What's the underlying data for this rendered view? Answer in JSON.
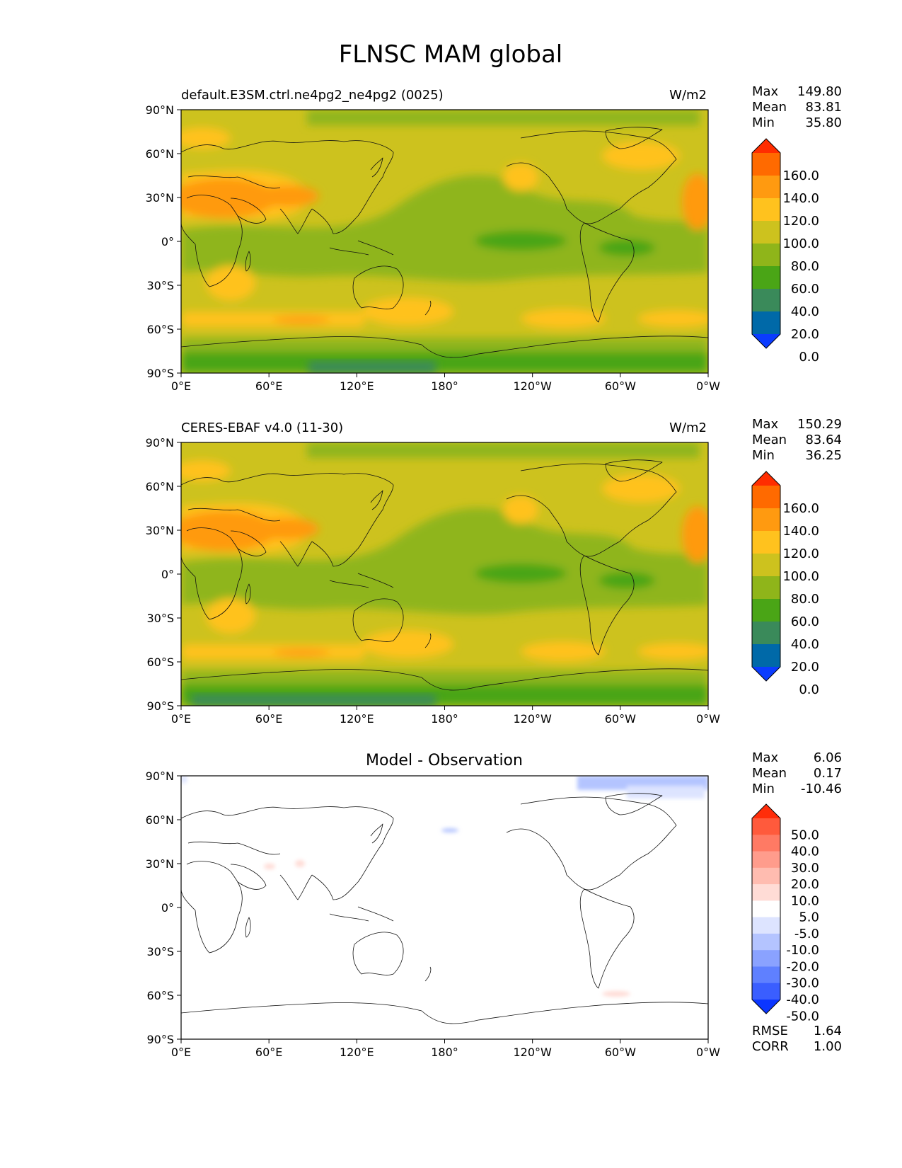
{
  "figure": {
    "title": "FLNSC MAM global"
  },
  "axes": {
    "lat_labels": [
      "90°N",
      "60°N",
      "30°N",
      "0°",
      "30°S",
      "60°S",
      "90°S"
    ],
    "lon_labels": [
      "0°E",
      "60°E",
      "120°E",
      "180°",
      "120°W",
      "60°W",
      "0°W"
    ]
  },
  "panels": [
    {
      "left_title": "default.E3SM.ctrl.ne4pg2_ne4pg2 (0025)",
      "center_title": "",
      "units": "W/m2",
      "stats": [
        {
          "label": "Max",
          "value": "149.80"
        },
        {
          "label": "Mean",
          "value": "83.81"
        },
        {
          "label": "Min",
          "value": "35.80"
        }
      ],
      "colorbar_labels": [
        "160.0",
        "140.0",
        "120.0",
        "100.0",
        "80.0",
        "60.0",
        "40.0",
        "20.0",
        "0.0"
      ],
      "colorbar_colors": [
        "#ff2d00",
        "#ff6a00",
        "#ff9a10",
        "#ffc21e",
        "#cdc21e",
        "#8fb51a",
        "#4aa516",
        "#3a8a5a",
        "#0069a8",
        "#0b3cff"
      ],
      "extra_stats": []
    },
    {
      "left_title": "CERES-EBAF v4.0 (11-30)",
      "center_title": "",
      "units": "W/m2",
      "stats": [
        {
          "label": "Max",
          "value": "150.29"
        },
        {
          "label": "Mean",
          "value": "83.64"
        },
        {
          "label": "Min",
          "value": "36.25"
        }
      ],
      "colorbar_labels": [
        "160.0",
        "140.0",
        "120.0",
        "100.0",
        "80.0",
        "60.0",
        "40.0",
        "20.0",
        "0.0"
      ],
      "colorbar_colors": [
        "#ff2d00",
        "#ff6a00",
        "#ff9a10",
        "#ffc21e",
        "#cdc21e",
        "#8fb51a",
        "#4aa516",
        "#3a8a5a",
        "#0069a8",
        "#0b3cff"
      ],
      "extra_stats": []
    },
    {
      "left_title": "",
      "center_title": "Model - Observation",
      "units": "",
      "stats": [
        {
          "label": "Max",
          "value": "6.06"
        },
        {
          "label": "Mean",
          "value": "0.17"
        },
        {
          "label": "Min",
          "value": "-10.46"
        }
      ],
      "colorbar_labels": [
        "50.0",
        "40.0",
        "30.0",
        "20.0",
        "10.0",
        "5.0",
        "-5.0",
        "-10.0",
        "-20.0",
        "-30.0",
        "-40.0",
        "-50.0"
      ],
      "colorbar_colors": [
        "#ff2d0a",
        "#ff5a3c",
        "#ff7a64",
        "#ff9c8c",
        "#ffbcb0",
        "#ffdcd6",
        "#ffffff",
        "#dde4ff",
        "#b4c4ff",
        "#8aa2ff",
        "#5f80ff",
        "#3a5eff",
        "#0b36ff"
      ],
      "extra_stats": [
        {
          "label": "RMSE",
          "value": "1.64"
        },
        {
          "label": "CORR",
          "value": "1.00"
        }
      ]
    }
  ]
}
